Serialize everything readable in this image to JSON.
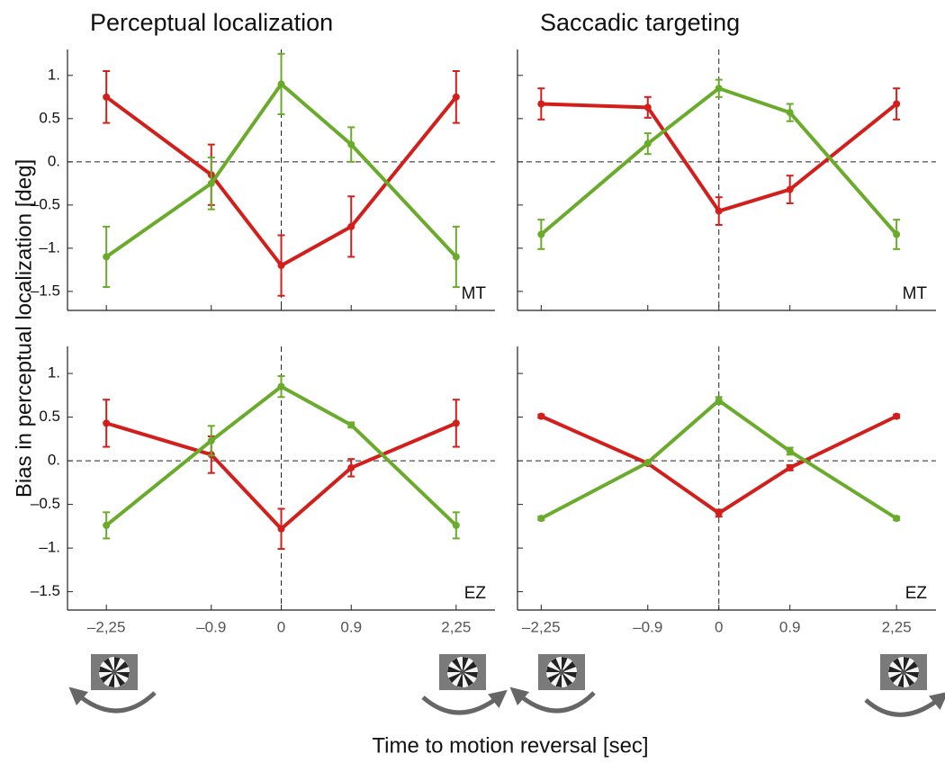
{
  "ylabel": "Bias in perceptual localization [deg]",
  "xlabel": "Time to motion reversal [sec]",
  "chart_data": [
    {
      "type": "line",
      "title": "Perceptual localization",
      "panel_label": "MT",
      "x": [
        -2.25,
        -0.9,
        0,
        0.9,
        2.25
      ],
      "series": [
        {
          "color": "#d21f1b",
          "values": [
            0.75,
            -0.15,
            -1.2,
            -0.75,
            0.75
          ],
          "errors": [
            0.3,
            0.35,
            0.35,
            0.35,
            0.3
          ]
        },
        {
          "color": "#6aab2c",
          "values": [
            -1.1,
            -0.25,
            0.9,
            0.2,
            -1.1
          ],
          "errors": [
            0.35,
            0.3,
            0.35,
            0.2,
            0.35
          ]
        }
      ],
      "xlim": [
        -2.75,
        2.75
      ],
      "ylim": [
        -1.72,
        1.3
      ],
      "xticks": [
        -2.25,
        -0.9,
        0,
        0.9,
        2.25
      ],
      "show_xtick_labels": false,
      "yticks": [
        {
          "value": 1,
          "label": "1."
        },
        {
          "value": 0.5,
          "label": "0.5"
        },
        {
          "value": 0,
          "label": "0."
        },
        {
          "value": -0.5,
          "label": "–0.5"
        },
        {
          "value": -1,
          "label": "–1."
        },
        {
          "value": -1.5,
          "label": "–1.5"
        }
      ],
      "show_ytick_labels": true,
      "zero_lines": true
    },
    {
      "type": "line",
      "title": "Saccadic targeting",
      "panel_label": "MT",
      "x": [
        -2.25,
        -0.9,
        0,
        0.9,
        2.25
      ],
      "series": [
        {
          "color": "#d21f1b",
          "values": [
            0.67,
            0.63,
            -0.57,
            -0.32,
            0.67
          ],
          "errors": [
            0.18,
            0.12,
            0.16,
            0.16,
            0.18
          ]
        },
        {
          "color": "#6aab2c",
          "values": [
            -0.84,
            0.21,
            0.85,
            0.57,
            -0.84
          ],
          "errors": [
            0.17,
            0.12,
            0.1,
            0.1,
            0.17
          ]
        }
      ],
      "xlim": [
        -2.55,
        2.75
      ],
      "ylim": [
        -1.72,
        1.3
      ],
      "xticks": [
        -2.25,
        -0.9,
        0,
        0.9,
        2.25
      ],
      "show_xtick_labels": false,
      "yticks": [
        1,
        0.5,
        0,
        -0.5,
        -1,
        -1.5
      ],
      "show_ytick_labels": false,
      "zero_lines": true
    },
    {
      "type": "line",
      "panel_label": "EZ",
      "x": [
        -2.25,
        -0.9,
        0,
        0.9,
        2.25
      ],
      "series": [
        {
          "color": "#d21f1b",
          "values": [
            0.43,
            0.07,
            -0.78,
            -0.08,
            0.43
          ],
          "errors": [
            0.27,
            0.21,
            0.23,
            0.1,
            0.27
          ]
        },
        {
          "color": "#6aab2c",
          "values": [
            -0.74,
            0.23,
            0.85,
            0.41,
            -0.74
          ],
          "errors": [
            0.15,
            0.17,
            0.12,
            0.03,
            0.15
          ]
        }
      ],
      "xlim": [
        -2.75,
        2.75
      ],
      "ylim": [
        -1.71,
        1.31
      ],
      "xticks": [
        {
          "value": -2.25,
          "label": "–2,25"
        },
        {
          "value": -0.9,
          "label": "–0.9"
        },
        0,
        0.9,
        {
          "value": 2.25,
          "label": "2,25"
        }
      ],
      "show_xtick_labels": true,
      "yticks": [
        {
          "value": 1,
          "label": "1."
        },
        {
          "value": 0.5,
          "label": "0.5"
        },
        {
          "value": 0,
          "label": "0."
        },
        {
          "value": -0.5,
          "label": "–0.5"
        },
        {
          "value": -1,
          "label": "–1."
        },
        {
          "value": -1.5,
          "label": "–1.5"
        }
      ],
      "show_ytick_labels": true,
      "zero_lines": true
    },
    {
      "type": "line",
      "panel_label": "EZ",
      "x": [
        -2.25,
        -0.9,
        0,
        0.9,
        2.25
      ],
      "series": [
        {
          "color": "#d21f1b",
          "values": [
            0.51,
            -0.03,
            -0.6,
            -0.08,
            0.51
          ],
          "errors": [
            0.02,
            0.02,
            0.04,
            0.03,
            0.02
          ]
        },
        {
          "color": "#6aab2c",
          "values": [
            -0.66,
            -0.02,
            0.69,
            0.11,
            -0.66
          ],
          "errors": [
            0.02,
            0.02,
            0.04,
            0.04,
            0.02
          ]
        }
      ],
      "xlim": [
        -2.55,
        2.75
      ],
      "ylim": [
        -1.71,
        1.31
      ],
      "xticks": [
        {
          "value": -2.25,
          "label": "–2,25"
        },
        {
          "value": -0.9,
          "label": "–0.9"
        },
        0,
        0.9,
        {
          "value": 2.25,
          "label": "2,25"
        }
      ],
      "show_xtick_labels": true,
      "yticks": [
        1,
        0.5,
        0,
        -0.5,
        -1,
        -1.5
      ],
      "show_ytick_labels": false,
      "zero_lines": true
    }
  ]
}
